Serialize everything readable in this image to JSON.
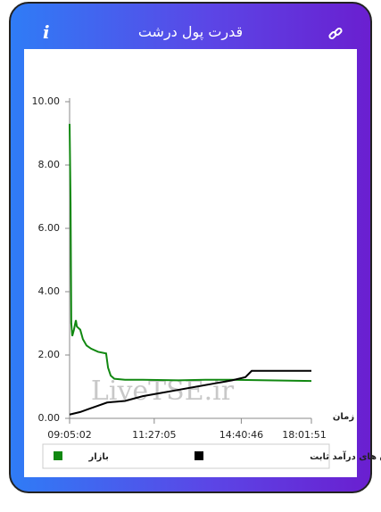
{
  "header": {
    "title": "قدرت پول درشت",
    "info_icon": "i"
  },
  "chart_data": {
    "type": "line",
    "x_label": "زمان",
    "watermark": "LiveTSE.ir",
    "xlim": [
      0,
      100
    ],
    "xticks": [
      {
        "value": 0,
        "label": "09:05:02"
      },
      {
        "value": 35,
        "label": "11:27:05"
      },
      {
        "value": 71,
        "label": "14:40:46"
      },
      {
        "value": 100,
        "label": "18:01:51"
      }
    ],
    "ylim": [
      0,
      10
    ],
    "yticks": [
      {
        "value": 0,
        "label": "0.00"
      },
      {
        "value": 2,
        "label": "2.00"
      },
      {
        "value": 4,
        "label": "4.00"
      },
      {
        "value": 6,
        "label": "6.00"
      },
      {
        "value": 8,
        "label": "8.00"
      },
      {
        "value": 10,
        "label": "10.00"
      }
    ],
    "grid": false,
    "series": [
      {
        "name": "بازار",
        "color": "#118811",
        "x": [
          0,
          0.4,
          0.7,
          1.1,
          1.8,
          2.6,
          3.0,
          4.4,
          5.5,
          7.0,
          8.9,
          11.8,
          15.1,
          15.9,
          17.0,
          18.5,
          22.9,
          30.3,
          45.0,
          56.1,
          67.2,
          81.9,
          100
        ],
        "values": [
          9.3,
          6.8,
          3.0,
          2.6,
          2.8,
          3.1,
          2.9,
          2.8,
          2.5,
          2.3,
          2.2,
          2.1,
          2.05,
          1.6,
          1.35,
          1.25,
          1.22,
          1.22,
          1.2,
          1.22,
          1.22,
          1.2,
          1.18
        ]
      },
      {
        "name": "صندوق های درآمد ثابت",
        "color": "#000000",
        "x": [
          0,
          4.4,
          8.1,
          11.8,
          15.5,
          22.9,
          30.3,
          37.6,
          45.0,
          52.4,
          59.8,
          67.2,
          72.7,
          75.3,
          100
        ],
        "values": [
          0.12,
          0.2,
          0.3,
          0.4,
          0.5,
          0.55,
          0.7,
          0.8,
          0.9,
          1.0,
          1.1,
          1.2,
          1.3,
          1.5,
          1.5
        ]
      }
    ]
  }
}
